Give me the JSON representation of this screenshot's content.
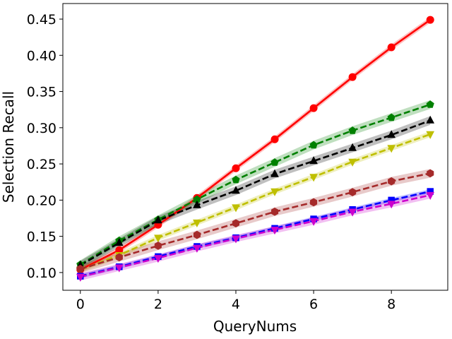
{
  "chart_data": {
    "type": "line",
    "title": "",
    "xlabel": "QueryNums",
    "ylabel": "Selection Recall",
    "xlim": [
      -0.45,
      9.45
    ],
    "ylim": [
      0.0755,
      0.4715
    ],
    "x_ticks": [
      0,
      2,
      4,
      6,
      8
    ],
    "x_tick_labels": [
      "0",
      "2",
      "4",
      "6",
      "8"
    ],
    "y_ticks": [
      0.1,
      0.15,
      0.2,
      0.25,
      0.3,
      0.35,
      0.4,
      0.45
    ],
    "y_tick_labels": [
      "0.10",
      "0.15",
      "0.20",
      "0.25",
      "0.30",
      "0.35",
      "0.40",
      "0.45"
    ],
    "grid": false,
    "legend": "none",
    "x": [
      0,
      1,
      2,
      3,
      4,
      5,
      6,
      7,
      8,
      9
    ],
    "series": [
      {
        "color": "#ff0000",
        "line_style": "solid",
        "marker": "circle",
        "values": [
          0.104,
          0.131,
          0.166,
          0.203,
          0.244,
          0.284,
          0.327,
          0.37,
          0.411,
          0.449
        ],
        "band": 0.004
      },
      {
        "color": "#008000",
        "line_style": "dashed",
        "marker": "pentagon",
        "values": [
          0.111,
          0.144,
          0.173,
          0.201,
          0.228,
          0.252,
          0.276,
          0.296,
          0.314,
          0.332
        ],
        "band": 0.006
      },
      {
        "color": "#000000",
        "line_style": "dashed",
        "marker": "triangle-up",
        "values": [
          0.11,
          0.141,
          0.172,
          0.193,
          0.213,
          0.236,
          0.254,
          0.272,
          0.29,
          0.31
        ],
        "band": 0.006
      },
      {
        "color": "#bfbf00",
        "line_style": "dashed",
        "marker": "triangle-down",
        "values": [
          0.104,
          0.124,
          0.148,
          0.169,
          0.19,
          0.212,
          0.232,
          0.253,
          0.272,
          0.291
        ],
        "band": 0.004
      },
      {
        "color": "#a52a2a",
        "line_style": "dashed",
        "marker": "hexagon",
        "values": [
          0.105,
          0.121,
          0.137,
          0.152,
          0.168,
          0.184,
          0.197,
          0.211,
          0.226,
          0.237
        ],
        "band": 0.006
      },
      {
        "color": "#0000ff",
        "line_style": "dashed",
        "marker": "square",
        "values": [
          0.095,
          0.108,
          0.122,
          0.136,
          0.148,
          0.161,
          0.174,
          0.187,
          0.2,
          0.212
        ],
        "band": 0.003
      },
      {
        "color": "#cc00cc",
        "line_style": "dashed",
        "marker": "triangle-down",
        "values": [
          0.094,
          0.107,
          0.12,
          0.134,
          0.147,
          0.159,
          0.171,
          0.184,
          0.195,
          0.207
        ],
        "band": 0.005
      }
    ]
  }
}
